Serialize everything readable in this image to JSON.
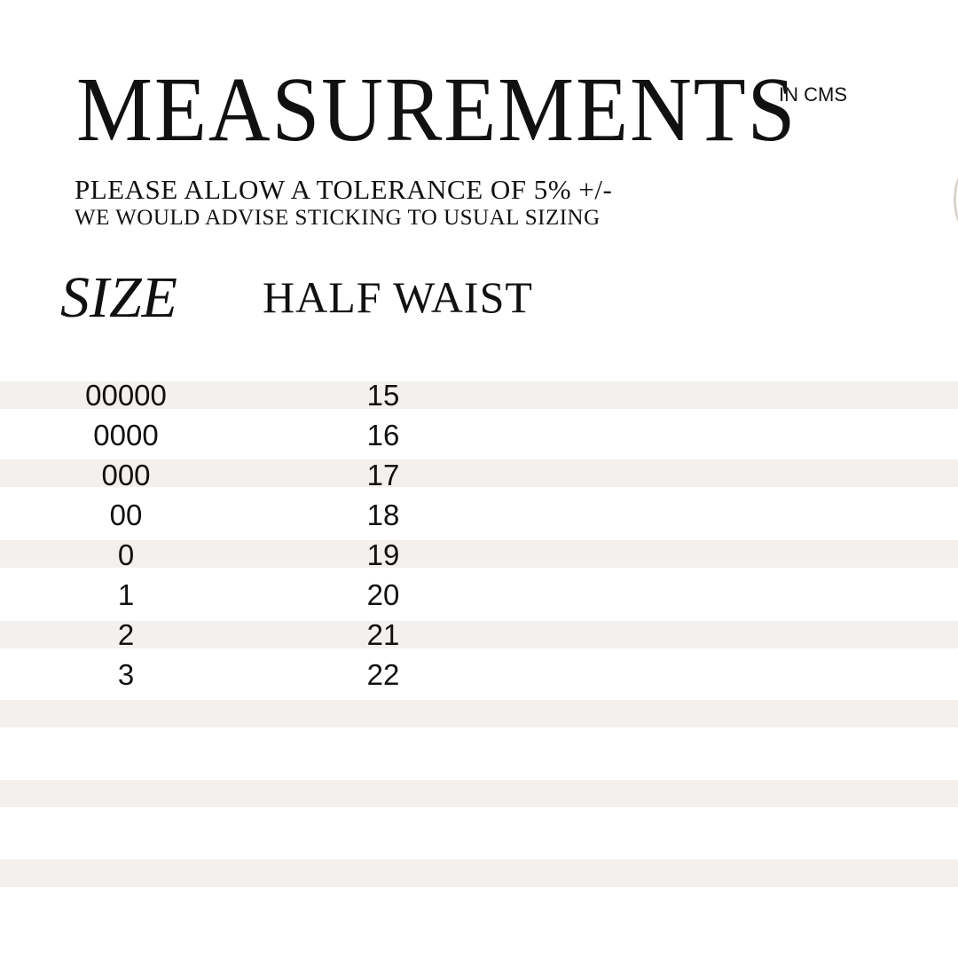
{
  "header": {
    "title": "MEASUREMENTS",
    "unit": "IN CMS",
    "note_tolerance": "PLEASE ALLOW A TOLERANCE OF 5% +/-",
    "note_advice": "WE WOULD ADVISE STICKING TO USUAL SIZING"
  },
  "table": {
    "columns": [
      "SIZE",
      "HALF WAIST"
    ],
    "rows": [
      {
        "size": "00000",
        "half_waist": "15"
      },
      {
        "size": "0000",
        "half_waist": "16"
      },
      {
        "size": "000",
        "half_waist": "17"
      },
      {
        "size": "00",
        "half_waist": "18"
      },
      {
        "size": "0",
        "half_waist": "19"
      },
      {
        "size": "1",
        "half_waist": "20"
      },
      {
        "size": "2",
        "half_waist": "21"
      },
      {
        "size": "3",
        "half_waist": "22"
      }
    ]
  },
  "colors": {
    "stripe": "#f3f0ed",
    "text": "#111111"
  }
}
